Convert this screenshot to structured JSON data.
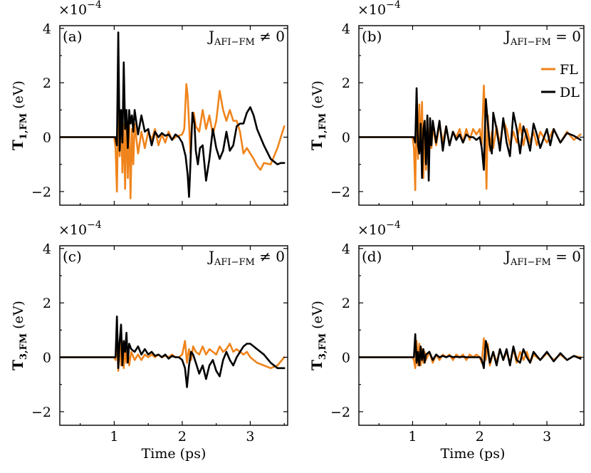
{
  "figure": {
    "x_axis_title": "Time (ps)",
    "y_multiplier": "×10",
    "y_multiplier_exp": "−4",
    "y_unit": "(eV)",
    "legend": [
      {
        "name": "FL",
        "color": "#f0841c"
      },
      {
        "name": "DL",
        "color": "#000000"
      }
    ]
  },
  "chart_data": [
    {
      "type": "line",
      "panel": "(a)",
      "annotation": {
        "base": "J",
        "sub": "AFI−FM",
        "rel": "≠ 0"
      },
      "ylabel": {
        "base": "T",
        "sub": "1,FM"
      },
      "xlim": [
        0.2,
        3.55
      ],
      "ylim": [
        -2.5,
        4.1
      ],
      "xticks": [
        1,
        2,
        3
      ],
      "yticks": [
        -2,
        0,
        2,
        4
      ],
      "ytick_labels": [
        "−2",
        "0",
        "2",
        "4"
      ],
      "series": [
        {
          "name": "FL",
          "color": "#f0841c",
          "x": [
            0.2,
            1.0,
            1.02,
            1.04,
            1.06,
            1.08,
            1.1,
            1.12,
            1.14,
            1.16,
            1.18,
            1.2,
            1.22,
            1.24,
            1.26,
            1.28,
            1.3,
            1.35,
            1.4,
            1.45,
            1.5,
            1.55,
            1.6,
            1.65,
            1.7,
            1.75,
            1.8,
            1.85,
            1.9,
            1.95,
            2.0,
            2.03,
            2.06,
            2.08,
            2.1,
            2.12,
            2.14,
            2.17,
            2.2,
            2.25,
            2.3,
            2.35,
            2.4,
            2.45,
            2.5,
            2.55,
            2.6,
            2.65,
            2.7,
            2.75,
            2.8,
            2.85,
            2.9,
            2.95,
            3.0,
            3.05,
            3.1,
            3.15,
            3.2,
            3.3,
            3.4,
            3.5
          ],
          "y": [
            0,
            0,
            -0.4,
            -2.0,
            1.0,
            -0.7,
            0.9,
            -1.3,
            0.5,
            -1.9,
            1.0,
            -1.5,
            0.7,
            -2.25,
            0.3,
            -1.0,
            0.5,
            -0.6,
            0.2,
            -0.4,
            0.2,
            -0.1,
            0.3,
            -0.3,
            0.1,
            -0.2,
            0.2,
            -0.1,
            0,
            0.05,
            0.1,
            0.3,
            1.95,
            1.5,
            0.5,
            -0.6,
            0.4,
            0.9,
            0.4,
            0.2,
            1.0,
            0.3,
            0.8,
            0.1,
            0.6,
            1.7,
            1.0,
            0.6,
            1.0,
            0.6,
            0.6,
            0.2,
            -0.6,
            -0.4,
            -0.6,
            -0.8,
            -1.05,
            -1.2,
            -0.95,
            -1.0,
            -0.4,
            0.4
          ]
        },
        {
          "name": "DL",
          "color": "#000000",
          "x": [
            0.2,
            1.0,
            1.02,
            1.04,
            1.06,
            1.08,
            1.1,
            1.12,
            1.14,
            1.16,
            1.18,
            1.2,
            1.22,
            1.24,
            1.26,
            1.28,
            1.3,
            1.35,
            1.4,
            1.45,
            1.5,
            1.55,
            1.6,
            1.65,
            1.7,
            1.75,
            1.8,
            1.85,
            1.9,
            1.95,
            2.0,
            2.05,
            2.08,
            2.1,
            2.12,
            2.15,
            2.18,
            2.2,
            2.23,
            2.26,
            2.3,
            2.35,
            2.4,
            2.45,
            2.5,
            2.55,
            2.6,
            2.65,
            2.7,
            2.75,
            2.8,
            2.85,
            2.9,
            2.95,
            3.0,
            3.05,
            3.1,
            3.2,
            3.3,
            3.4,
            3.45,
            3.5
          ],
          "y": [
            0,
            0,
            0,
            -0.3,
            3.85,
            -0.5,
            1.0,
            -0.2,
            2.75,
            0.3,
            1.0,
            -0.4,
            1.0,
            0.5,
            0.8,
            0.2,
            1.0,
            0.1,
            0.8,
            0.2,
            0.3,
            -0.3,
            0.2,
            0,
            0.15,
            0.05,
            0.1,
            -0.1,
            0.1,
            0,
            -0.2,
            -0.7,
            -1.4,
            -2.2,
            -1.0,
            0.9,
            0.5,
            -0.5,
            -1.0,
            -0.4,
            -0.3,
            -1.6,
            -0.8,
            0.3,
            -0.4,
            -0.8,
            -0.5,
            0.2,
            -0.5,
            -0.3,
            0.4,
            0.5,
            0.5,
            0.9,
            1.1,
            0.8,
            0.3,
            -0.3,
            -0.8,
            -1.0,
            -0.95,
            -0.95
          ]
        }
      ]
    },
    {
      "type": "line",
      "panel": "(b)",
      "annotation": {
        "base": "J",
        "sub": "AFI−FM",
        "rel": "= 0"
      },
      "ylabel": {
        "base": "T",
        "sub": "1,FM"
      },
      "xlim": [
        0.2,
        3.55
      ],
      "ylim": [
        -2.5,
        4.1
      ],
      "xticks": [
        1,
        2,
        3
      ],
      "yticks": [
        -2,
        0,
        2,
        4
      ],
      "ytick_labels": [
        "−2",
        "0",
        "2",
        "4"
      ],
      "series": [
        {
          "name": "FL",
          "color": "#f0841c",
          "x": [
            0.2,
            1.0,
            1.02,
            1.04,
            1.06,
            1.08,
            1.1,
            1.12,
            1.14,
            1.16,
            1.18,
            1.2,
            1.22,
            1.24,
            1.26,
            1.28,
            1.3,
            1.35,
            1.4,
            1.45,
            1.5,
            1.55,
            1.6,
            1.65,
            1.7,
            1.75,
            1.8,
            1.85,
            1.9,
            1.95,
            2.0,
            2.03,
            2.06,
            2.08,
            2.1,
            2.12,
            2.15,
            2.18,
            2.2,
            2.25,
            2.3,
            2.35,
            2.4,
            2.45,
            2.5,
            2.55,
            2.6,
            2.65,
            2.7,
            2.75,
            2.8,
            2.85,
            2.9,
            3.0,
            3.1,
            3.2,
            3.3,
            3.4,
            3.5
          ],
          "y": [
            0,
            0,
            -0.4,
            -1.95,
            1.7,
            -0.8,
            1.2,
            -0.5,
            1.3,
            -1.5,
            0.6,
            -1.2,
            0.8,
            -0.6,
            0.5,
            -0.4,
            0.4,
            -0.3,
            0.5,
            -0.2,
            0.4,
            -0.3,
            0.2,
            0,
            0.3,
            -0.2,
            0.3,
            -0.1,
            0.3,
            0.1,
            0.3,
            -0.3,
            1.9,
            0.6,
            -1.9,
            0.8,
            -0.5,
            0.2,
            -0.4,
            0.4,
            -0.3,
            0.6,
            0.3,
            -0.3,
            0.2,
            -0.2,
            0.5,
            -0.3,
            0.3,
            -0.2,
            0.2,
            -0.3,
            0.2,
            -0.2,
            0.3,
            -0.2,
            0.2,
            -0.1,
            0.1
          ]
        },
        {
          "name": "DL",
          "color": "#000000",
          "x": [
            0.2,
            1.0,
            1.02,
            1.04,
            1.06,
            1.08,
            1.1,
            1.12,
            1.14,
            1.16,
            1.18,
            1.2,
            1.22,
            1.24,
            1.26,
            1.28,
            1.3,
            1.35,
            1.4,
            1.45,
            1.5,
            1.55,
            1.6,
            1.65,
            1.7,
            1.75,
            1.8,
            1.85,
            1.9,
            1.95,
            2.0,
            2.03,
            2.06,
            2.09,
            2.12,
            2.15,
            2.18,
            2.2,
            2.25,
            2.3,
            2.35,
            2.4,
            2.45,
            2.5,
            2.55,
            2.6,
            2.65,
            2.7,
            2.75,
            2.8,
            2.85,
            2.9,
            3.0,
            3.05,
            3.1,
            3.2,
            3.3,
            3.4,
            3.5
          ],
          "y": [
            0,
            0,
            0,
            -0.2,
            1.8,
            -0.3,
            -0.6,
            0.5,
            -1.5,
            0.3,
            0.6,
            -1.0,
            0.8,
            -1.6,
            0.7,
            -0.3,
            0.6,
            -0.2,
            0.6,
            -0.5,
            0.4,
            -0.3,
            0.2,
            -0.1,
            0.1,
            -0.2,
            0.1,
            0,
            0,
            -0.1,
            0,
            -0.4,
            -1.2,
            1.4,
            0.5,
            -0.3,
            -0.6,
            0.9,
            0.3,
            -0.5,
            0.7,
            -0.2,
            -0.7,
            0.9,
            0.3,
            -0.6,
            0.4,
            0,
            -0.5,
            0.5,
            0.1,
            -0.4,
            0.3,
            -0.3,
            0.3,
            -0.2,
            0.15,
            0.05,
            -0.1
          ]
        }
      ]
    },
    {
      "type": "line",
      "panel": "(c)",
      "annotation": {
        "base": "J",
        "sub": "AFI−FM",
        "rel": "≠ 0"
      },
      "ylabel": {
        "base": "T",
        "sub": "3,FM"
      },
      "xlim": [
        0.2,
        3.55
      ],
      "ylim": [
        -2.5,
        4.1
      ],
      "xticks": [
        1,
        2,
        3
      ],
      "xtick_labels": [
        "1",
        "2",
        "3"
      ],
      "yticks": [
        -2,
        0,
        2,
        4
      ],
      "ytick_labels": [
        "−2",
        "0",
        "2",
        "4"
      ],
      "series": [
        {
          "name": "FL",
          "color": "#f0841c",
          "x": [
            0.2,
            1.0,
            1.02,
            1.04,
            1.06,
            1.08,
            1.1,
            1.12,
            1.14,
            1.16,
            1.18,
            1.2,
            1.22,
            1.25,
            1.3,
            1.35,
            1.4,
            1.45,
            1.5,
            1.55,
            1.6,
            1.65,
            1.7,
            1.75,
            1.8,
            1.85,
            1.9,
            1.95,
            2.0,
            2.04,
            2.07,
            2.1,
            2.13,
            2.16,
            2.2,
            2.25,
            2.3,
            2.35,
            2.4,
            2.45,
            2.5,
            2.55,
            2.6,
            2.65,
            2.7,
            2.75,
            2.8,
            2.85,
            2.9,
            2.95,
            3.0,
            3.1,
            3.2,
            3.3,
            3.4,
            3.5
          ],
          "y": [
            0,
            0,
            -0.1,
            0.8,
            -0.5,
            0.6,
            -0.3,
            0.5,
            -0.4,
            0.4,
            -0.2,
            0.3,
            -0.3,
            0.2,
            -0.1,
            0.1,
            -0.1,
            0.1,
            0,
            0.1,
            0,
            0.1,
            0,
            0.05,
            0,
            0.1,
            0,
            0,
            0.1,
            0.6,
            -0.2,
            0.3,
            -0.1,
            0.4,
            0.2,
            0.1,
            0.4,
            0.1,
            0.3,
            0.2,
            0.1,
            0.4,
            0.2,
            0.3,
            0.5,
            0.2,
            0.3,
            0.2,
            0.1,
            0.2,
            0,
            -0.2,
            -0.3,
            -0.4,
            -0.3,
            0
          ]
        },
        {
          "name": "DL",
          "color": "#000000",
          "x": [
            0.2,
            1.0,
            1.02,
            1.04,
            1.06,
            1.08,
            1.1,
            1.12,
            1.14,
            1.16,
            1.18,
            1.2,
            1.22,
            1.25,
            1.3,
            1.35,
            1.4,
            1.45,
            1.5,
            1.55,
            1.6,
            1.65,
            1.7,
            1.75,
            1.8,
            1.85,
            1.9,
            1.95,
            2.0,
            2.04,
            2.07,
            2.1,
            2.13,
            2.16,
            2.2,
            2.25,
            2.3,
            2.35,
            2.4,
            2.45,
            2.5,
            2.55,
            2.6,
            2.65,
            2.7,
            2.75,
            2.8,
            2.85,
            2.9,
            2.95,
            3.0,
            3.1,
            3.2,
            3.3,
            3.4,
            3.5
          ],
          "y": [
            0,
            0,
            0,
            1.5,
            -0.4,
            0.6,
            1.2,
            -0.3,
            0.6,
            0.2,
            0.9,
            -0.2,
            0.5,
            0.3,
            0.2,
            0.4,
            0.1,
            0.3,
            0.1,
            0.2,
            0.05,
            0.1,
            0,
            0.1,
            -0.05,
            0.05,
            0,
            0,
            -0.1,
            -0.4,
            -1.1,
            -0.3,
            0.2,
            0.1,
            -0.2,
            -0.6,
            -0.3,
            -0.8,
            -0.3,
            -0.1,
            -0.5,
            -0.7,
            -0.1,
            0.2,
            -0.1,
            -0.3,
            0,
            0.2,
            0.4,
            0.5,
            0.5,
            0.3,
            0.1,
            -0.2,
            -0.4,
            -0.4
          ]
        }
      ]
    },
    {
      "type": "line",
      "panel": "(d)",
      "annotation": {
        "base": "J",
        "sub": "AFI−FM",
        "rel": "= 0"
      },
      "ylabel": {
        "base": "T",
        "sub": "3,FM"
      },
      "xlim": [
        0.2,
        3.55
      ],
      "ylim": [
        -2.5,
        4.1
      ],
      "xticks": [
        1,
        2,
        3
      ],
      "xtick_labels": [
        "1",
        "2",
        "3"
      ],
      "yticks": [
        -2,
        0,
        2,
        4
      ],
      "ytick_labels": [
        "−2",
        "0",
        "2",
        "4"
      ],
      "series": [
        {
          "name": "FL",
          "color": "#f0841c",
          "x": [
            0.2,
            1.0,
            1.02,
            1.04,
            1.06,
            1.08,
            1.1,
            1.12,
            1.14,
            1.16,
            1.18,
            1.2,
            1.25,
            1.3,
            1.35,
            1.4,
            1.45,
            1.5,
            1.55,
            1.6,
            1.65,
            1.7,
            1.75,
            1.8,
            1.85,
            1.9,
            1.95,
            2.0,
            2.03,
            2.06,
            2.09,
            2.12,
            2.15,
            2.2,
            2.25,
            2.3,
            2.35,
            2.4,
            2.45,
            2.5,
            2.55,
            2.6,
            2.65,
            2.7,
            2.75,
            2.8,
            2.9,
            3.0,
            3.1,
            3.2,
            3.3,
            3.4,
            3.5
          ],
          "y": [
            0,
            0,
            -0.1,
            -0.4,
            0.6,
            -0.3,
            0.5,
            -0.3,
            0.3,
            -0.2,
            0.2,
            -0.1,
            0.2,
            -0.2,
            0.1,
            -0.1,
            0.1,
            0,
            0.1,
            -0.1,
            0.1,
            0,
            0.1,
            -0.1,
            0.1,
            0,
            0.1,
            0,
            -0.2,
            0.7,
            -0.1,
            0.5,
            -0.3,
            0.2,
            -0.2,
            0.3,
            -0.1,
            0.2,
            -0.2,
            0.3,
            -0.2,
            0.2,
            -0.1,
            0.2,
            -0.2,
            0.1,
            -0.1,
            0.15,
            -0.1,
            0.1,
            -0.1,
            0.05,
            0
          ]
        },
        {
          "name": "DL",
          "color": "#000000",
          "x": [
            0.2,
            1.0,
            1.02,
            1.04,
            1.06,
            1.08,
            1.1,
            1.12,
            1.14,
            1.16,
            1.18,
            1.2,
            1.25,
            1.3,
            1.35,
            1.4,
            1.45,
            1.5,
            1.55,
            1.6,
            1.65,
            1.7,
            1.75,
            1.8,
            1.85,
            1.9,
            1.95,
            2.0,
            2.03,
            2.06,
            2.09,
            2.12,
            2.15,
            2.2,
            2.25,
            2.3,
            2.35,
            2.4,
            2.45,
            2.5,
            2.55,
            2.6,
            2.65,
            2.7,
            2.75,
            2.8,
            2.9,
            3.0,
            3.1,
            3.2,
            3.3,
            3.4,
            3.5
          ],
          "y": [
            0,
            0,
            0,
            0.85,
            -0.2,
            0.2,
            -0.3,
            0.4,
            -0.1,
            0.3,
            -0.2,
            0.1,
            0.2,
            -0.1,
            0.1,
            0,
            0.05,
            0,
            0.05,
            0,
            0.02,
            0,
            0.02,
            0,
            0,
            0,
            0,
            0,
            -0.1,
            -0.4,
            0.6,
            0.3,
            -0.2,
            0.2,
            -0.3,
            0.3,
            -0.1,
            0.3,
            -0.3,
            0.4,
            -0.1,
            -0.2,
            0.3,
            0,
            -0.2,
            0.2,
            -0.1,
            0.2,
            -0.15,
            0.15,
            -0.1,
            0.05,
            -0.05
          ]
        }
      ]
    }
  ]
}
